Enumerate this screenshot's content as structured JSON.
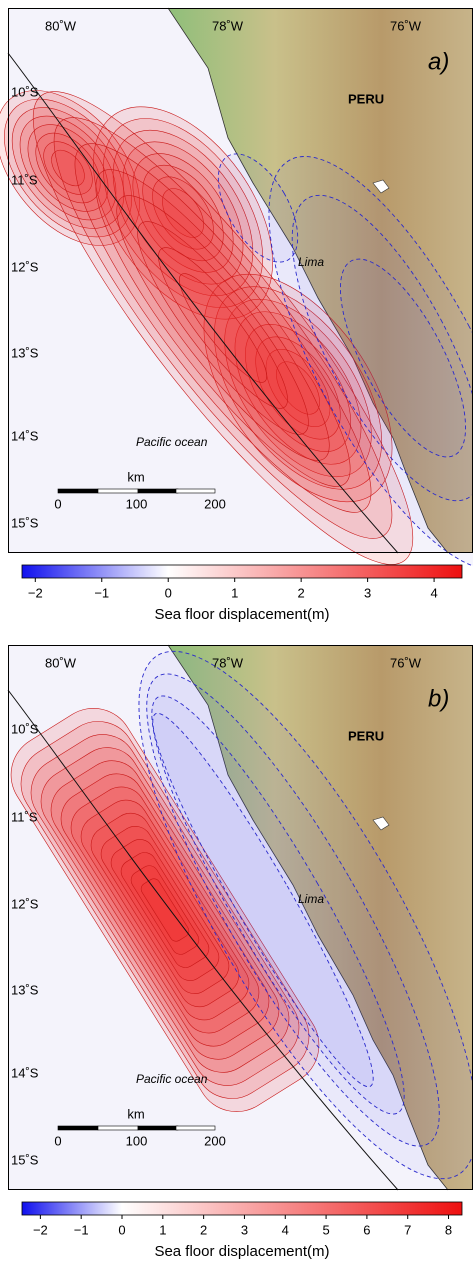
{
  "panels": [
    {
      "label": "a)",
      "lon_labels": [
        "80˚W",
        "78˚W",
        "76˚W"
      ],
      "lat_labels": [
        "10˚S",
        "11˚S",
        "12˚S",
        "13˚S",
        "14˚S",
        "15˚S"
      ],
      "country": "PERU",
      "city": "Lima",
      "ocean": "Pacific ocean",
      "scale": {
        "unit": "km",
        "ticks": [
          "0",
          "100",
          "200"
        ]
      },
      "colorbar": {
        "lim": [
          -2.2,
          4.42
        ],
        "ticks": [
          {
            "value": -2,
            "label": "−2"
          },
          {
            "value": -1,
            "label": "−1"
          },
          0,
          1,
          2,
          3,
          4
        ],
        "label": "Sea floor displacement(m)"
      }
    },
    {
      "label": "b)",
      "lon_labels": [
        "80˚W",
        "78˚W",
        "76˚W"
      ],
      "lat_labels": [
        "10˚S",
        "11˚S",
        "12˚S",
        "13˚S",
        "14˚S",
        "15˚S"
      ],
      "country": "PERU",
      "city": "Lima",
      "ocean": "Pacific ocean",
      "scale": {
        "unit": "km",
        "ticks": [
          "0",
          "100",
          "200"
        ]
      },
      "colorbar": {
        "lim": [
          -2.45,
          8.33
        ],
        "ticks": [
          {
            "value": -2,
            "label": "−2"
          },
          {
            "value": -1,
            "label": "−1"
          },
          0,
          1,
          2,
          3,
          4,
          5,
          6,
          7,
          8
        ],
        "label": "Sea floor displacement(m)"
      }
    }
  ]
}
